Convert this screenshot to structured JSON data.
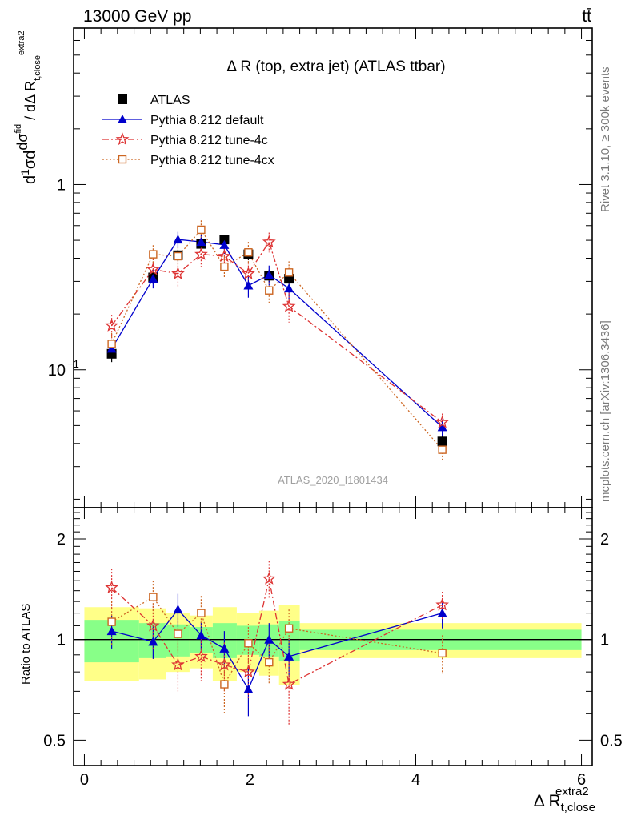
{
  "header": {
    "energy": "13000 GeV pp",
    "process": "tt̄"
  },
  "side": {
    "rivet": "Rivet 3.1.10, ≥ 300k events",
    "source": "mcplots.cern.ch [arXiv:1306.3436]"
  },
  "chart_data": {
    "type": "line",
    "title": "Δ R (top, extra jet) (ATLAS ttbar)",
    "analysis_tag": "ATLAS_2020_I1801434",
    "ylabel": "1/σ dσ^fid / dΔ R_t,close^extra2",
    "xlabel": "Δ R_t,close^extra2",
    "xlim": [
      -0.13,
      6.13
    ],
    "ylim": [
      0.018,
      7.0
    ],
    "yscale": "log",
    "x_ticks": [
      "0",
      "2",
      "4",
      "6"
    ],
    "y_ticks": [
      "10^-1",
      "1"
    ],
    "legend_position": "top-left",
    "x": [
      0.33,
      0.83,
      1.13,
      1.41,
      1.69,
      1.98,
      2.23,
      2.47,
      4.32
    ],
    "series": [
      {
        "name": "ATLAS",
        "marker": "square-filled",
        "color": "#000000",
        "linestyle": "none",
        "values": [
          0.122,
          0.315,
          0.415,
          0.478,
          0.505,
          0.42,
          0.322,
          0.31,
          0.041
        ],
        "errors": [
          0.012,
          0.025,
          0.03,
          0.03,
          0.03,
          0.03,
          0.025,
          0.025,
          0.004
        ]
      },
      {
        "name": "Pythia 8.212 default",
        "marker": "triangle-filled",
        "color": "#0000cc",
        "linestyle": "solid",
        "values": [
          0.13,
          0.31,
          0.505,
          0.49,
          0.472,
          0.285,
          0.325,
          0.275,
          0.049
        ],
        "errors": [
          0.015,
          0.035,
          0.05,
          0.045,
          0.05,
          0.04,
          0.04,
          0.04,
          0.005
        ]
      },
      {
        "name": "Pythia 8.212 tune-4c",
        "marker": "star-open",
        "color": "#dd3333",
        "linestyle": "dashdot",
        "values": [
          0.173,
          0.348,
          0.33,
          0.42,
          0.41,
          0.33,
          0.49,
          0.22,
          0.052
        ],
        "errors": [
          0.025,
          0.05,
          0.05,
          0.06,
          0.06,
          0.05,
          0.06,
          0.04,
          0.006
        ]
      },
      {
        "name": "Pythia 8.212 tune-4cx",
        "marker": "square-open",
        "color": "#cc6622",
        "linestyle": "dotted",
        "values": [
          0.138,
          0.42,
          0.41,
          0.57,
          0.36,
          0.43,
          0.268,
          0.335,
          0.037
        ],
        "errors": [
          0.02,
          0.05,
          0.05,
          0.07,
          0.05,
          0.06,
          0.04,
          0.05,
          0.005
        ]
      }
    ],
    "ratio": {
      "ylabel": "Ratio to ATLAS",
      "ylim": [
        0.42,
        2.48
      ],
      "yscale": "log",
      "y_ticks": [
        "0.5",
        "1",
        "2"
      ],
      "bins": [
        {
          "lo": 0.0,
          "hi": 0.66,
          "inner": 0.145,
          "outer": 0.25
        },
        {
          "lo": 0.66,
          "hi": 0.99,
          "inner": 0.12,
          "outer": 0.24
        },
        {
          "lo": 0.99,
          "hi": 1.27,
          "inner": 0.11,
          "outer": 0.2
        },
        {
          "lo": 1.27,
          "hi": 1.55,
          "inner": 0.09,
          "outer": 0.18
        },
        {
          "lo": 1.55,
          "hi": 1.84,
          "inner": 0.12,
          "outer": 0.25
        },
        {
          "lo": 1.84,
          "hi": 2.11,
          "inner": 0.1,
          "outer": 0.2
        },
        {
          "lo": 2.11,
          "hi": 2.35,
          "inner": 0.11,
          "outer": 0.22
        },
        {
          "lo": 2.35,
          "hi": 2.6,
          "inner": 0.14,
          "outer": 0.27
        },
        {
          "lo": 2.6,
          "hi": 6.0,
          "inner": 0.07,
          "outer": 0.12
        }
      ],
      "series": [
        {
          "name": "Pythia 8.212 default",
          "values": [
            1.06,
            0.985,
            1.23,
            1.03,
            0.94,
            0.71,
            1.0,
            0.89,
            1.2
          ],
          "errors": [
            0.12,
            0.11,
            0.14,
            0.1,
            0.12,
            0.12,
            0.12,
            0.12,
            0.12
          ]
        },
        {
          "name": "Pythia 8.212 tune-4c",
          "values": [
            1.43,
            1.1,
            0.84,
            0.89,
            0.84,
            0.8,
            1.52,
            0.735,
            1.27
          ],
          "errors": [
            0.2,
            0.16,
            0.14,
            0.14,
            0.14,
            0.14,
            0.2,
            0.18,
            0.12
          ]
        },
        {
          "name": "Pythia 8.212 tune-4cx",
          "values": [
            1.13,
            1.34,
            1.04,
            1.2,
            0.735,
            0.975,
            0.855,
            1.08,
            0.91
          ],
          "errors": [
            0.17,
            0.16,
            0.12,
            0.15,
            0.13,
            0.14,
            0.12,
            0.15,
            0.12
          ]
        }
      ]
    }
  }
}
